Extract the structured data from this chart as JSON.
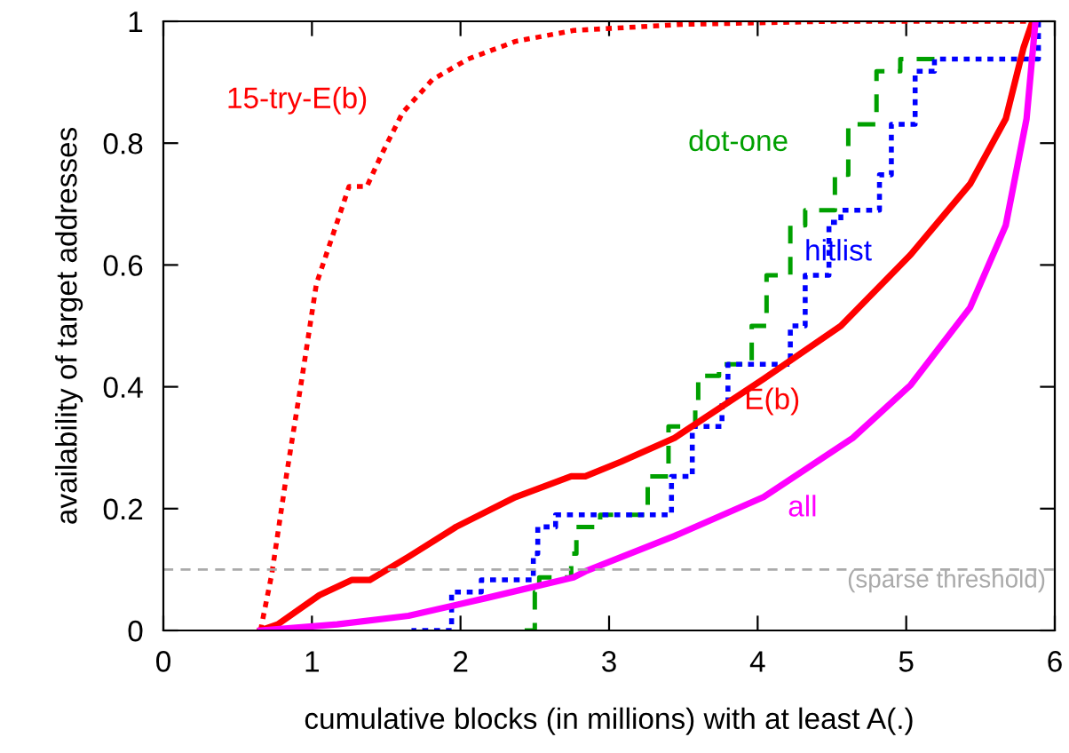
{
  "chart_data": {
    "type": "line",
    "xlabel": "cumulative blocks (in millions) with at least A(.)",
    "ylabel": "availability of target addresses",
    "xlim": [
      0,
      6
    ],
    "xticks": [
      0,
      1,
      2,
      3,
      4,
      5,
      6
    ],
    "ylim": [
      0,
      1
    ],
    "yticks": [
      0,
      0.2,
      0.4,
      0.6,
      0.8,
      1
    ],
    "grid": false,
    "legend": false,
    "ref_lines": [
      {
        "axis": "y",
        "value": 0.1,
        "label": "(sparse threshold)",
        "color": "#aaaaaa",
        "line_style": "dashed"
      }
    ],
    "series": [
      {
        "name": "15-try-E(b)",
        "color": "#ff0000",
        "line_style": "dotted",
        "x": [
          0.654,
          0.73,
          0.83,
          0.932,
          1.03,
          1.15,
          1.25,
          1.37,
          1.47,
          1.61,
          1.81,
          2.05,
          2.37,
          2.76,
          3.5,
          4.5,
          5.85
        ],
        "values": [
          0,
          0.093,
          0.257,
          0.413,
          0.569,
          0.656,
          0.729,
          0.729,
          0.782,
          0.85,
          0.904,
          0.938,
          0.967,
          0.985,
          0.995,
          1.0,
          1.0
        ]
      },
      {
        "name": "dot-one",
        "type": "step",
        "color": "#00a000",
        "line_style": "dashed",
        "x": [
          2.35,
          2.5,
          2.53,
          2.745,
          2.78,
          2.94,
          3.26,
          3.4,
          3.58,
          3.6,
          3.74,
          3.96,
          4.06,
          4.22,
          4.32,
          4.52,
          4.61,
          4.8,
          4.96,
          5.19
        ],
        "values": [
          0,
          0.063,
          0.087,
          0.126,
          0.17,
          0.19,
          0.253,
          0.335,
          0.374,
          0.418,
          0.437,
          0.5,
          0.583,
          0.665,
          0.69,
          0.748,
          0.831,
          0.918,
          0.938,
          0.938
        ]
      },
      {
        "name": "hitlist",
        "type": "step",
        "color": "#0000ff",
        "line_style": "dotted",
        "x": [
          1.67,
          1.94,
          2.14,
          2.49,
          2.52,
          2.64,
          3.42,
          3.56,
          3.76,
          3.8,
          4.22,
          4.32,
          4.48,
          4.56,
          4.82,
          4.9,
          5.06,
          5.19,
          5.89
        ],
        "values": [
          0,
          0.063,
          0.083,
          0.126,
          0.17,
          0.19,
          0.253,
          0.335,
          0.374,
          0.437,
          0.5,
          0.583,
          0.67,
          0.69,
          0.748,
          0.831,
          0.918,
          0.938,
          1.0
        ]
      },
      {
        "name": "E(b)",
        "color": "#ff0000",
        "line_style": "solid",
        "x": [
          0.654,
          0.77,
          1.05,
          1.27,
          1.39,
          1.65,
          1.97,
          2.37,
          2.745,
          2.84,
          3.08,
          3.44,
          4.04,
          4.56,
          5.03,
          5.43,
          5.67,
          5.79,
          5.85
        ],
        "values": [
          0,
          0.01,
          0.058,
          0.083,
          0.083,
          0.121,
          0.17,
          0.219,
          0.253,
          0.253,
          0.277,
          0.316,
          0.413,
          0.5,
          0.617,
          0.733,
          0.84,
          0.957,
          1.0
        ]
      },
      {
        "name": "all",
        "color": "#ff00ff",
        "line_style": "solid",
        "x": [
          0.654,
          1.17,
          1.65,
          2.17,
          2.76,
          2.84,
          3.44,
          4.04,
          4.64,
          5.03,
          5.43,
          5.67,
          5.81,
          5.87
        ],
        "values": [
          0,
          0.01,
          0.024,
          0.053,
          0.087,
          0.097,
          0.155,
          0.219,
          0.316,
          0.403,
          0.53,
          0.665,
          0.84,
          1.0
        ]
      }
    ]
  }
}
